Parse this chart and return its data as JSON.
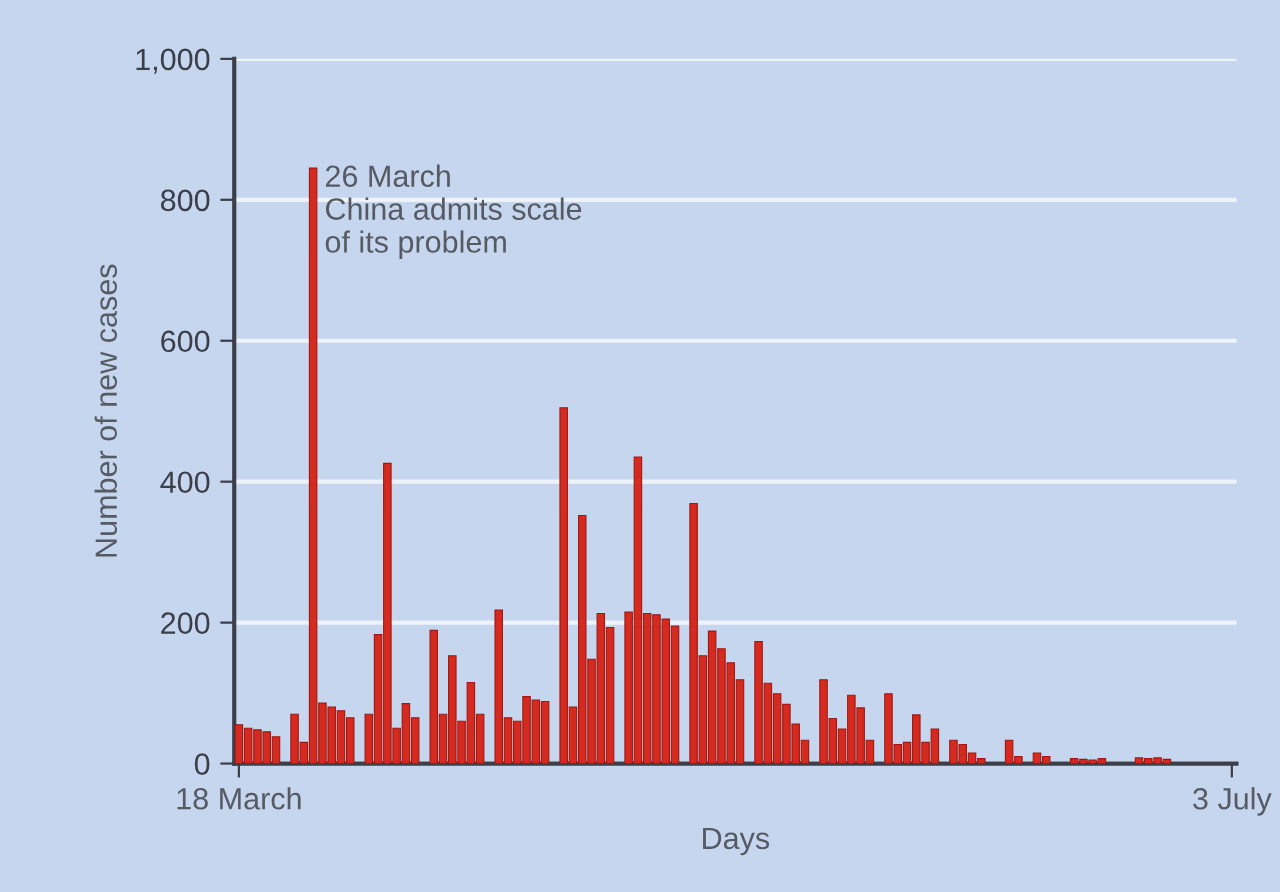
{
  "chart_data": {
    "type": "bar",
    "xlabel": "Days",
    "ylabel": "Number of new cases",
    "categories": [
      "18 March",
      null,
      null,
      null,
      null,
      null,
      null,
      null,
      null,
      null,
      null,
      null,
      null,
      null,
      null,
      null,
      null,
      null,
      null,
      null,
      null,
      null,
      null,
      null,
      null,
      null,
      null,
      null,
      null,
      null,
      null,
      null,
      null,
      null,
      null,
      null,
      null,
      null,
      null,
      null,
      null,
      null,
      null,
      null,
      null,
      null,
      null,
      null,
      null,
      null,
      null,
      null,
      null,
      null,
      null,
      null,
      null,
      null,
      null,
      null,
      null,
      null,
      null,
      null,
      null,
      null,
      null,
      null,
      null,
      null,
      null,
      null,
      null,
      null,
      null,
      null,
      null,
      null,
      null,
      null,
      null,
      null,
      null,
      null,
      null,
      null,
      null,
      null,
      null,
      null,
      null,
      null,
      null,
      null,
      null,
      null,
      null,
      null,
      null,
      null,
      null,
      null,
      null,
      null,
      null,
      null,
      null,
      "3 July"
    ],
    "values": [
      55,
      50,
      48,
      45,
      38,
      null,
      70,
      30,
      845,
      86,
      80,
      75,
      65,
      null,
      70,
      183,
      426,
      50,
      85,
      65,
      null,
      189,
      70,
      153,
      60,
      115,
      70,
      null,
      218,
      65,
      60,
      95,
      90,
      88,
      null,
      505,
      80,
      352,
      148,
      213,
      193,
      null,
      215,
      435,
      213,
      211,
      205,
      195,
      null,
      369,
      153,
      188,
      163,
      143,
      119,
      null,
      173,
      114,
      99,
      84,
      56,
      33,
      null,
      119,
      64,
      49,
      97,
      79,
      33,
      null,
      99,
      27,
      30,
      69,
      30,
      49,
      null,
      33,
      27,
      15,
      7,
      null,
      null,
      33,
      10,
      null,
      15,
      10,
      null,
      null,
      7,
      6,
      5,
      7,
      null,
      null,
      null,
      8,
      7,
      8,
      6,
      null,
      null,
      null,
      null,
      null,
      null,
      null
    ],
    "color": "#d42a20",
    "ylim": [
      0,
      1000
    ],
    "yticks": [
      0,
      200,
      400,
      600,
      800,
      {
        "value": 1000,
        "label": "1,000"
      }
    ],
    "grid": "y",
    "annotations": [
      "26 March\nChina admits scale\nof its problem"
    ]
  }
}
